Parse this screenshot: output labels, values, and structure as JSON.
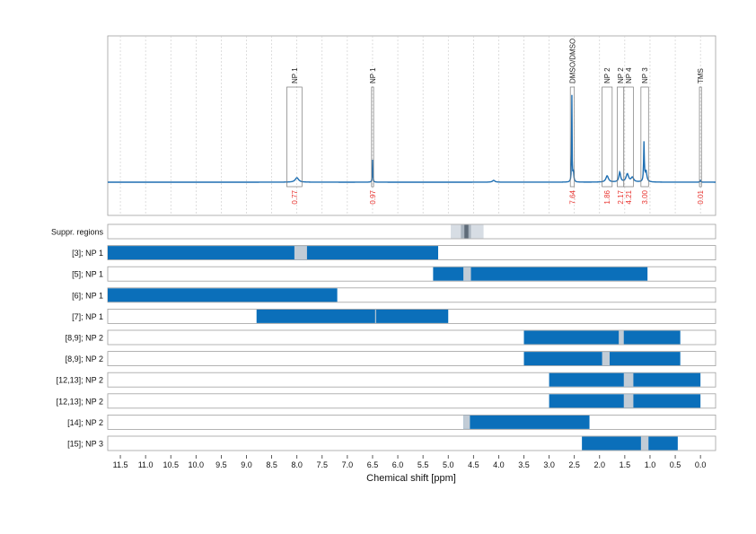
{
  "chart_data": {
    "type": "spectrum-with-region-bars",
    "x_axis": {
      "label": "Chemical shift [ppm]",
      "reversed": true,
      "xlim": [
        11.75,
        -0.3
      ],
      "ticks": [
        11.5,
        11.0,
        10.5,
        10.0,
        9.5,
        9.0,
        8.5,
        8.0,
        7.5,
        7.0,
        6.5,
        6.0,
        5.5,
        5.0,
        4.5,
        4.0,
        3.5,
        3.0,
        2.5,
        2.0,
        1.5,
        1.0,
        0.5,
        0.0
      ],
      "tick_labels": [
        "11.5",
        "11.0",
        "10.5",
        "10.0",
        "9.5",
        "9.0",
        "8.5",
        "8.0",
        "7.5",
        "7.0",
        "6.5",
        "6.0",
        "5.5",
        "5.0",
        "4.5",
        "4.0",
        "3.5",
        "3.0",
        "2.5",
        "2.0",
        "1.5",
        "1.0",
        "0.5",
        "0.0"
      ],
      "grid": true
    },
    "spectrum": {
      "color": "#1f6fb2",
      "peaks": [
        {
          "ppm": 8.0,
          "height": 0.05,
          "width": 0.04
        },
        {
          "ppm": 6.5,
          "height": 0.25,
          "width": 0.006
        },
        {
          "ppm": 4.1,
          "height": 0.02,
          "width": 0.03
        },
        {
          "ppm": 2.55,
          "height": 1.0,
          "width": 0.005
        },
        {
          "ppm": 2.52,
          "height": 0.12,
          "width": 0.01
        },
        {
          "ppm": 1.85,
          "height": 0.07,
          "width": 0.03
        },
        {
          "ppm": 1.6,
          "height": 0.11,
          "width": 0.02
        },
        {
          "ppm": 1.45,
          "height": 0.09,
          "width": 0.03
        },
        {
          "ppm": 1.35,
          "height": 0.05,
          "width": 0.03
        },
        {
          "ppm": 1.12,
          "height": 0.43,
          "width": 0.008
        },
        {
          "ppm": 1.08,
          "height": 0.12,
          "width": 0.02
        },
        {
          "ppm": 0.0,
          "height": 0.02,
          "width": 0.01
        }
      ],
      "annotations": [
        {
          "label": "NP 1",
          "from": 8.2,
          "to": 7.9,
          "integral": "0.77"
        },
        {
          "label": "NP 1",
          "from": 6.52,
          "to": 6.48,
          "integral": "0.97"
        },
        {
          "label": "DMSO/DMSO",
          "from": 2.58,
          "to": 2.5,
          "integral": "7.64"
        },
        {
          "label": "NP 2",
          "from": 1.95,
          "to": 1.75,
          "integral": "1.86"
        },
        {
          "label": "NP 2",
          "from": 1.65,
          "to": 1.52,
          "integral": "2.17"
        },
        {
          "label": "NP 4",
          "from": 1.52,
          "to": 1.33,
          "integral": "4.21"
        },
        {
          "label": "NP 3",
          "from": 1.18,
          "to": 1.03,
          "integral": "3.00"
        },
        {
          "label": "TMS",
          "from": 0.02,
          "to": -0.02,
          "integral": "0.01"
        }
      ],
      "integral_color": "#e8322e"
    },
    "rows": [
      {
        "label": "Suppr. regions",
        "type": "suppression",
        "light": {
          "from": 4.95,
          "to": 4.3
        },
        "mid": {
          "from": 4.75,
          "to": 4.55
        },
        "dark": {
          "from": 4.68,
          "to": 4.6
        }
      },
      {
        "label": "[3]; NP 1",
        "bars": [
          {
            "from": 11.75,
            "to": 5.2
          }
        ],
        "gaps": [
          {
            "from": 8.05,
            "to": 7.8
          }
        ]
      },
      {
        "label": "[5]; NP 1",
        "bars": [
          {
            "from": 5.3,
            "to": 1.05
          }
        ],
        "gaps": [
          {
            "from": 4.7,
            "to": 4.55
          }
        ]
      },
      {
        "label": "[6]; NP 1",
        "bars": [
          {
            "from": 11.75,
            "to": 7.2
          }
        ],
        "gaps": []
      },
      {
        "label": "[7]; NP 1",
        "bars": [
          {
            "from": 8.8,
            "to": 5.0
          }
        ],
        "gaps": [
          {
            "from": 6.45,
            "to": 6.43
          }
        ]
      },
      {
        "label": "[8,9]; NP 2",
        "bars": [
          {
            "from": 3.5,
            "to": 0.4
          }
        ],
        "gaps": [
          {
            "from": 1.62,
            "to": 1.52
          }
        ]
      },
      {
        "label": "[8,9]; NP 2",
        "bars": [
          {
            "from": 3.5,
            "to": 0.4
          }
        ],
        "gaps": [
          {
            "from": 1.95,
            "to": 1.8
          }
        ]
      },
      {
        "label": "[12,13]; NP 2",
        "bars": [
          {
            "from": 3.0,
            "to": 0.0
          }
        ],
        "gaps": [
          {
            "from": 1.52,
            "to": 1.33
          }
        ]
      },
      {
        "label": "[12,13]; NP 2",
        "bars": [
          {
            "from": 3.0,
            "to": 0.0
          }
        ],
        "gaps": [
          {
            "from": 1.52,
            "to": 1.33
          }
        ]
      },
      {
        "label": "[14]; NP 2",
        "bars": [
          {
            "from": 4.7,
            "to": 2.2
          }
        ],
        "gaps": [
          {
            "from": 4.7,
            "to": 4.57
          }
        ]
      },
      {
        "label": "[15]; NP 3",
        "bars": [
          {
            "from": 2.35,
            "to": 0.45
          }
        ],
        "gaps": [
          {
            "from": 1.18,
            "to": 1.03
          }
        ]
      }
    ],
    "colors": {
      "bar": "#0b6fba",
      "gap": "#c2ccd6",
      "suppr_light": "#d7dde4",
      "suppr_mid": "#a9b4bf",
      "suppr_dark": "#5e6b78",
      "panel_border": "#a0a0a0",
      "grid": "#c8c8c8"
    }
  }
}
